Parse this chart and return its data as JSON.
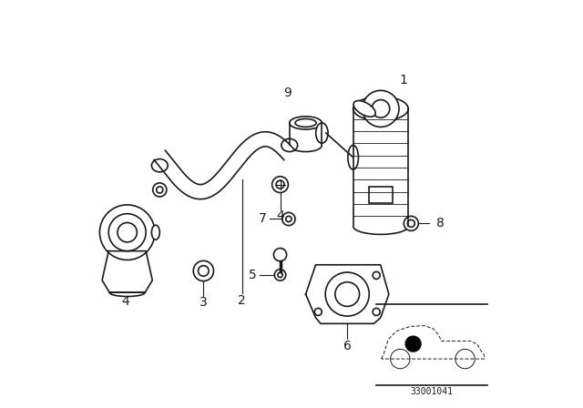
{
  "background_color": "#ffffff",
  "line_color": "#1a1a1a",
  "fig_width": 6.4,
  "fig_height": 4.48,
  "dpi": 100,
  "diagram_code_text": "33001041",
  "label_fontsize": 10
}
